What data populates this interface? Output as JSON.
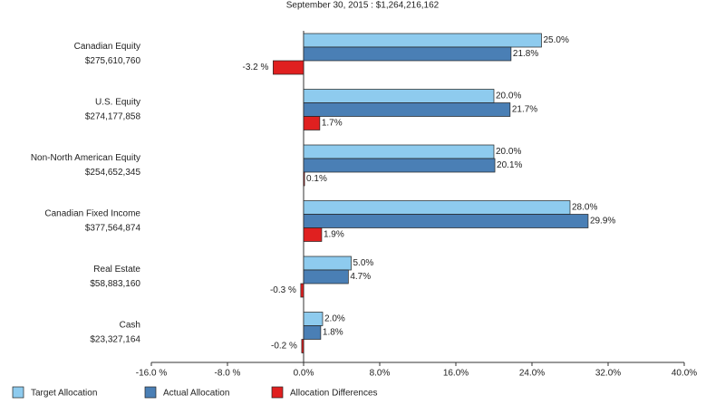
{
  "chart_data": {
    "type": "bar",
    "orientation": "horizontal",
    "title": "September 30, 2015 : $1,264,216,162",
    "categories": [
      "Canadian Equity",
      "U.S. Equity",
      "Non-North American Equity",
      "Canadian Fixed Income",
      "Real Estate",
      "Cash"
    ],
    "category_amounts": [
      "$275,610,760",
      "$274,177,858",
      "$254,652,345",
      "$377,564,874",
      "$58,883,160",
      "$23,327,164"
    ],
    "series": [
      {
        "name": "Target Allocation",
        "color": "#8ecbee",
        "values": [
          25.0,
          20.0,
          20.0,
          28.0,
          5.0,
          2.0
        ],
        "value_labels": [
          "25.0%",
          "20.0%",
          "20.0%",
          "28.0%",
          "5.0%",
          "2.0%"
        ]
      },
      {
        "name": "Actual Allocation",
        "color": "#4a7fb5",
        "values": [
          21.8,
          21.7,
          20.1,
          29.9,
          4.7,
          1.8
        ],
        "value_labels": [
          "21.8%",
          "21.7%",
          "20.1%",
          "29.9%",
          "4.7%",
          "1.8%"
        ]
      },
      {
        "name": "Allocation Differences",
        "color": "#e02020",
        "values": [
          -3.2,
          1.7,
          0.1,
          1.9,
          -0.3,
          -0.2
        ],
        "value_labels": [
          "-3.2 %",
          "1.7%",
          "0.1%",
          "1.9%",
          "-0.3 %",
          "-0.2 %"
        ]
      }
    ],
    "xlim": [
      -16,
      40
    ],
    "xticks": [
      {
        "value": -16,
        "label": "-16.0 %"
      },
      {
        "value": -8,
        "label": "-8.0 %"
      },
      {
        "value": 0,
        "label": "0.0%"
      },
      {
        "value": 8,
        "label": "8.0%"
      },
      {
        "value": 16,
        "label": "16.0%"
      },
      {
        "value": 24,
        "label": "24.0%"
      },
      {
        "value": 32,
        "label": "32.0%"
      },
      {
        "value": 40,
        "label": "40.0%"
      }
    ],
    "legend": "bottom"
  }
}
